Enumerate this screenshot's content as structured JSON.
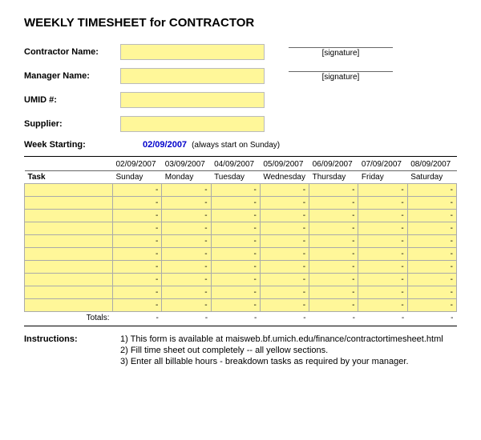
{
  "title": "WEEKLY TIMESHEET for CONTRACTOR",
  "fields": {
    "contractor_name_label": "Contractor Name:",
    "manager_name_label": "Manager Name:",
    "umid_label": "UMID #:",
    "supplier_label": "Supplier:",
    "week_starting_label": "Week Starting:",
    "week_starting_value": "02/09/2007",
    "week_starting_hint": "(always start on Sunday)",
    "signature_label_1": "[signature]",
    "signature_label_2": "[signature]"
  },
  "colors": {
    "highlight": "#fff799",
    "date_text": "#0000cc"
  },
  "grid": {
    "task_header": "Task",
    "dates": [
      "02/09/2007",
      "03/09/2007",
      "04/09/2007",
      "05/09/2007",
      "06/09/2007",
      "07/09/2007",
      "08/09/2007"
    ],
    "days": [
      "Sunday",
      "Monday",
      "Tuesday",
      "Wednesday",
      "Thursday",
      "Friday",
      "Saturday"
    ],
    "row_count": 10,
    "placeholder": "-",
    "totals_label": "Totals:",
    "totals": [
      "-",
      "-",
      "-",
      "-",
      "-",
      "-",
      "-"
    ]
  },
  "instructions": {
    "label": "Instructions:",
    "items": [
      "1) This form is available at maisweb.bf.umich.edu/finance/contractortimesheet.html",
      "2) Fill time sheet out completely -- all yellow sections.",
      "3) Enter all billable hours - breakdown tasks as required by your manager."
    ]
  }
}
